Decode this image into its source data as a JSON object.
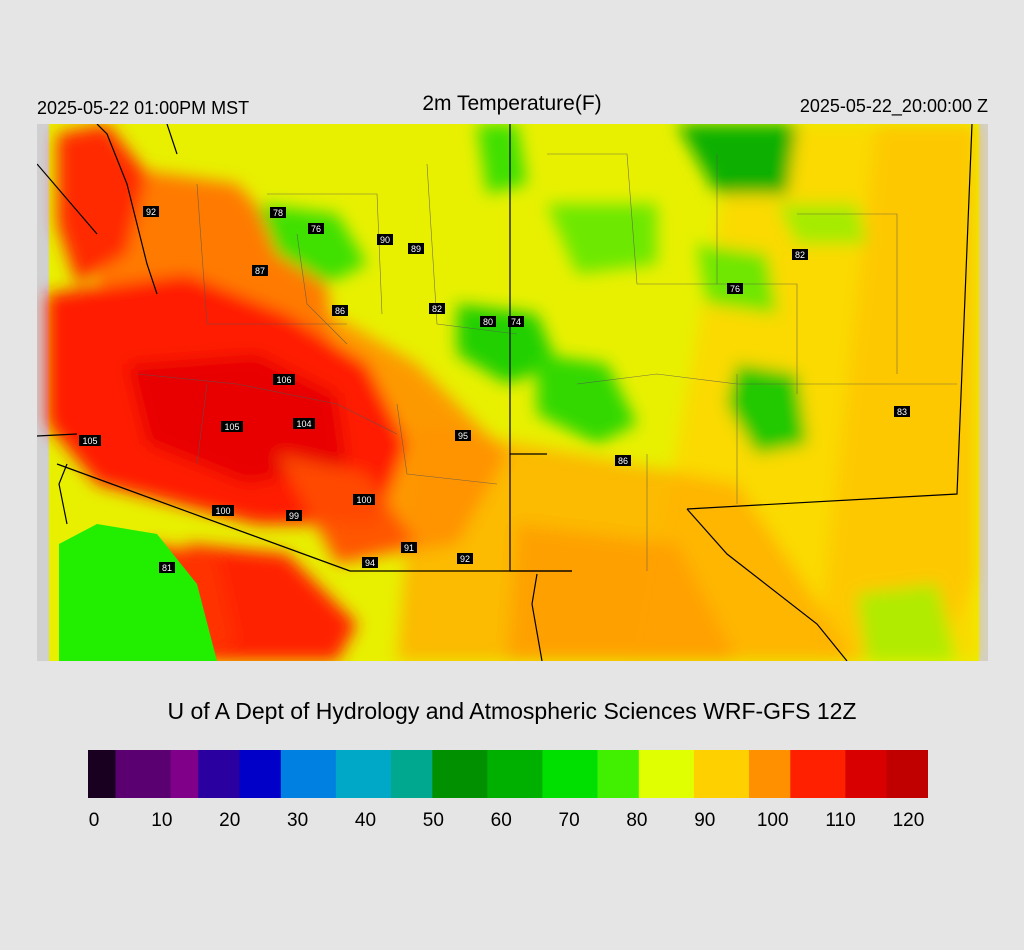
{
  "header": {
    "valid_time_local": "2025-05-22 01:00PM MST",
    "title": "2m Temperature(F)",
    "valid_time_utc": "2025-05-22_20:00:00 Z"
  },
  "credit": "U of A Dept of Hydrology and Atmospheric Sciences WRF-GFS 12Z",
  "colorbar": {
    "min": 0,
    "max": 122,
    "tick_labels": [
      "0",
      "10",
      "20",
      "30",
      "40",
      "50",
      "60",
      "70",
      "80",
      "90",
      "100",
      "110",
      "120"
    ],
    "color_stops": [
      {
        "value": 0,
        "color": "#1a0020"
      },
      {
        "value": 4,
        "color": "#5a0070"
      },
      {
        "value": 12,
        "color": "#80008a"
      },
      {
        "value": 16,
        "color": "#2a00a0"
      },
      {
        "value": 22,
        "color": "#0000c8"
      },
      {
        "value": 28,
        "color": "#0080e0"
      },
      {
        "value": 36,
        "color": "#00a8c8"
      },
      {
        "value": 44,
        "color": "#00a890"
      },
      {
        "value": 50,
        "color": "#009000"
      },
      {
        "value": 58,
        "color": "#00b000"
      },
      {
        "value": 66,
        "color": "#00e000"
      },
      {
        "value": 74,
        "color": "#40f000"
      },
      {
        "value": 80,
        "color": "#e0ff00"
      },
      {
        "value": 88,
        "color": "#ffd000"
      },
      {
        "value": 96,
        "color": "#ff9000"
      },
      {
        "value": 102,
        "color": "#ff2000"
      },
      {
        "value": 110,
        "color": "#d80000"
      },
      {
        "value": 116,
        "color": "#c00000"
      },
      {
        "value": 122,
        "color": "#d0d0d0"
      }
    ]
  },
  "stations": [
    "92",
    "78",
    "76",
    "90",
    "89",
    "87",
    "86",
    "82",
    "80",
    "74",
    "82",
    "76",
    "106",
    "105",
    "104",
    "95",
    "86",
    "83",
    "105",
    "100",
    "100",
    "99",
    "91",
    "94",
    "92",
    "81"
  ]
}
